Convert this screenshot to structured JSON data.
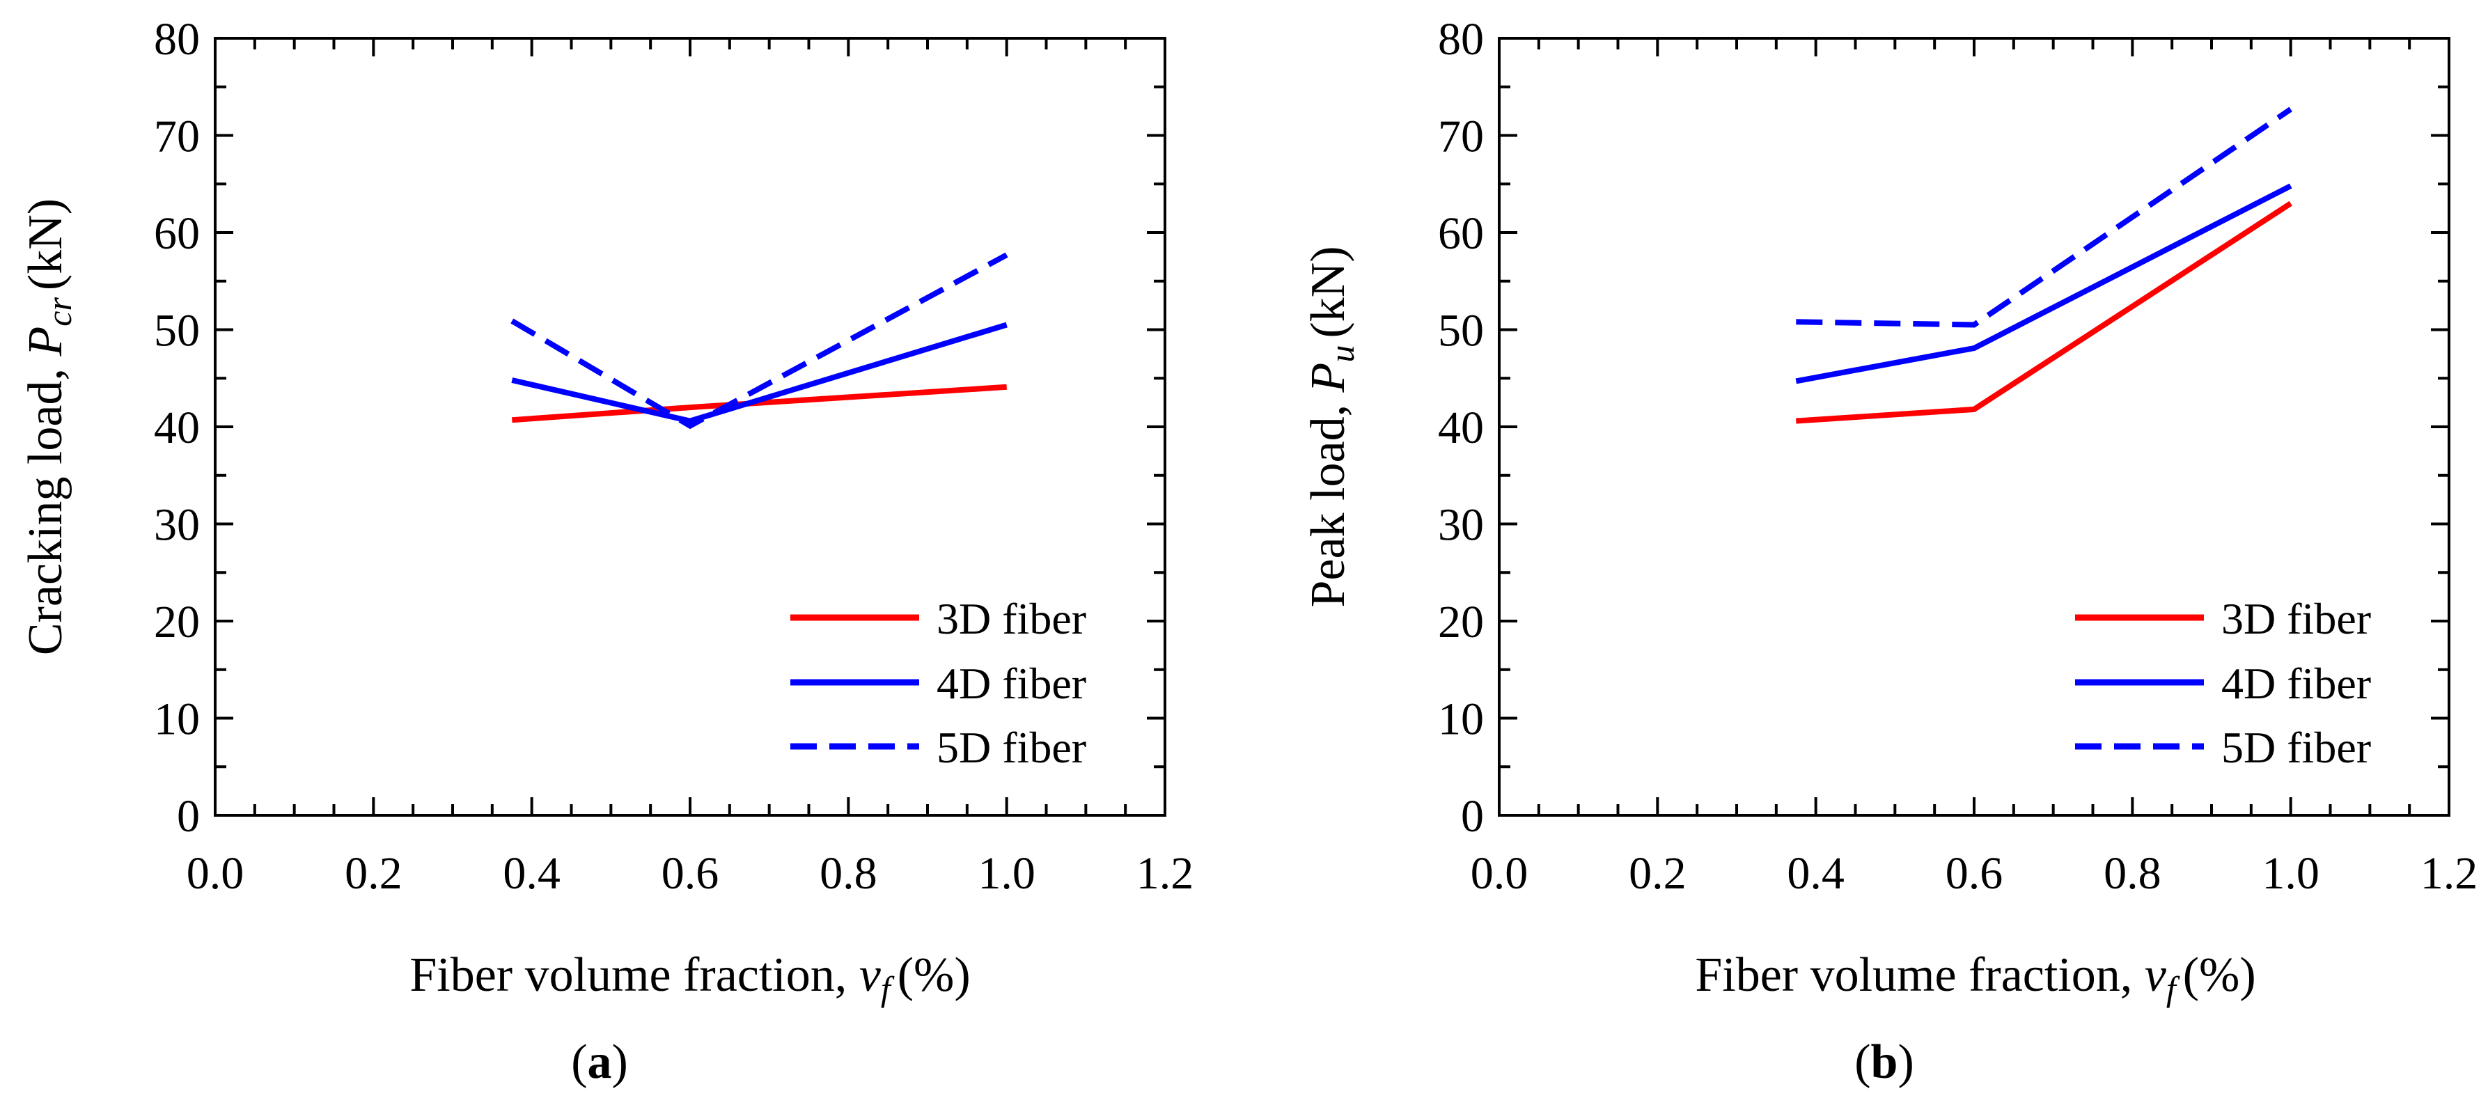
{
  "chart_data": [
    {
      "type": "line",
      "panel_label": "a",
      "xlabel_prefix": "Fiber volume  fraction, ",
      "xlabel_symbol": "v",
      "xlabel_subscript": "f",
      "xlabel_suffix": "(%)",
      "ylabel_prefix": "Cracking load, ",
      "ylabel_symbol": "P",
      "ylabel_subscript": "cr",
      "ylabel_suffix": "(kN)",
      "xlim": [
        0.0,
        1.2
      ],
      "ylim": [
        0,
        80
      ],
      "xticks": [
        "0.0",
        "0.2",
        "0.4",
        "0.6",
        "0.8",
        "1.0",
        "1.2"
      ],
      "yticks": [
        "0",
        "10",
        "20",
        "30",
        "40",
        "50",
        "60",
        "70",
        "80"
      ],
      "legend_position": "bottom-right",
      "series": [
        {
          "name": "3D fiber",
          "color": "#ff0000",
          "style": "solid",
          "x": [
            0.375,
            0.6,
            1.0
          ],
          "y": [
            40.7,
            42.0,
            44.1
          ]
        },
        {
          "name": "4D fiber",
          "color": "#0000ff",
          "style": "solid",
          "x": [
            0.375,
            0.6,
            1.0
          ],
          "y": [
            44.8,
            40.6,
            50.5
          ]
        },
        {
          "name": "5D fiber",
          "color": "#0000ff",
          "style": "dashed",
          "x": [
            0.375,
            0.6,
            1.0
          ],
          "y": [
            50.9,
            40.1,
            57.7
          ]
        }
      ]
    },
    {
      "type": "line",
      "panel_label": "b",
      "xlabel_prefix": "Fiber volume  fraction, ",
      "xlabel_symbol": "v",
      "xlabel_subscript": "f",
      "xlabel_suffix": "(%)",
      "ylabel_prefix": "Peak load, ",
      "ylabel_symbol": "P",
      "ylabel_subscript": "u",
      "ylabel_suffix": "(kN)",
      "xlim": [
        0.0,
        1.2
      ],
      "ylim": [
        0,
        80
      ],
      "xticks": [
        "0.0",
        "0.2",
        "0.4",
        "0.6",
        "0.8",
        "1.0",
        "1.2"
      ],
      "yticks": [
        "0",
        "10",
        "20",
        "30",
        "40",
        "50",
        "60",
        "70",
        "80"
      ],
      "legend_position": "bottom-right",
      "series": [
        {
          "name": "3D fiber",
          "color": "#ff0000",
          "style": "solid",
          "x": [
            0.375,
            0.6,
            1.0
          ],
          "y": [
            40.6,
            41.8,
            63.0
          ]
        },
        {
          "name": "4D fiber",
          "color": "#0000ff",
          "style": "solid",
          "x": [
            0.375,
            0.6,
            1.0
          ],
          "y": [
            44.7,
            48.1,
            64.8
          ]
        },
        {
          "name": "5D fiber",
          "color": "#0000ff",
          "style": "dashed",
          "x": [
            0.375,
            0.6,
            1.0
          ],
          "y": [
            50.8,
            50.5,
            72.7
          ]
        }
      ]
    }
  ]
}
